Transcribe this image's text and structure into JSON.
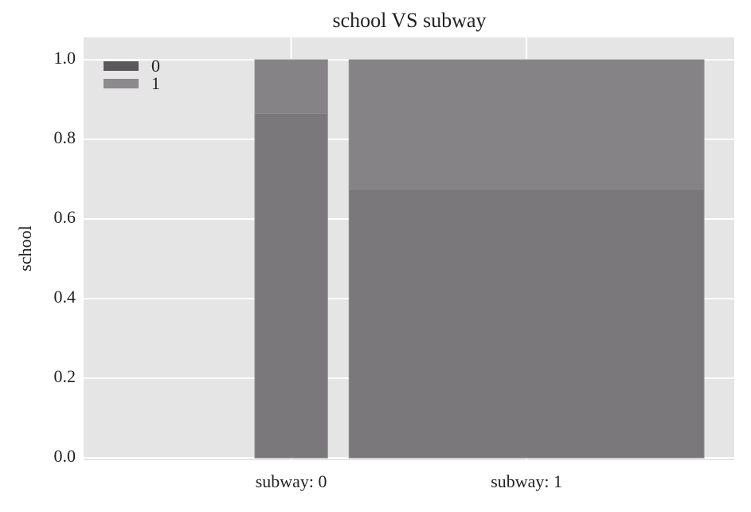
{
  "chart_data": {
    "type": "mosaic",
    "title": "school VS subway",
    "y_label": "school",
    "categories": [
      "subway: 0",
      "subway: 1"
    ],
    "widths": [
      0.17,
      0.83
    ],
    "series": [
      {
        "name": "0",
        "color": "#7a787a",
        "values": [
          0.865,
          0.675
        ]
      },
      {
        "name": "1",
        "color": "#858385",
        "values": [
          0.135,
          0.325
        ]
      }
    ],
    "ylim": [
      -0.006,
      1.056
    ],
    "yticks": [
      {
        "value": 0,
        "label": "0.0"
      },
      0.2,
      0.4,
      0.6,
      0.8,
      {
        "value": 1,
        "label": "1.0"
      }
    ],
    "grid": true,
    "legend": "upper left"
  }
}
